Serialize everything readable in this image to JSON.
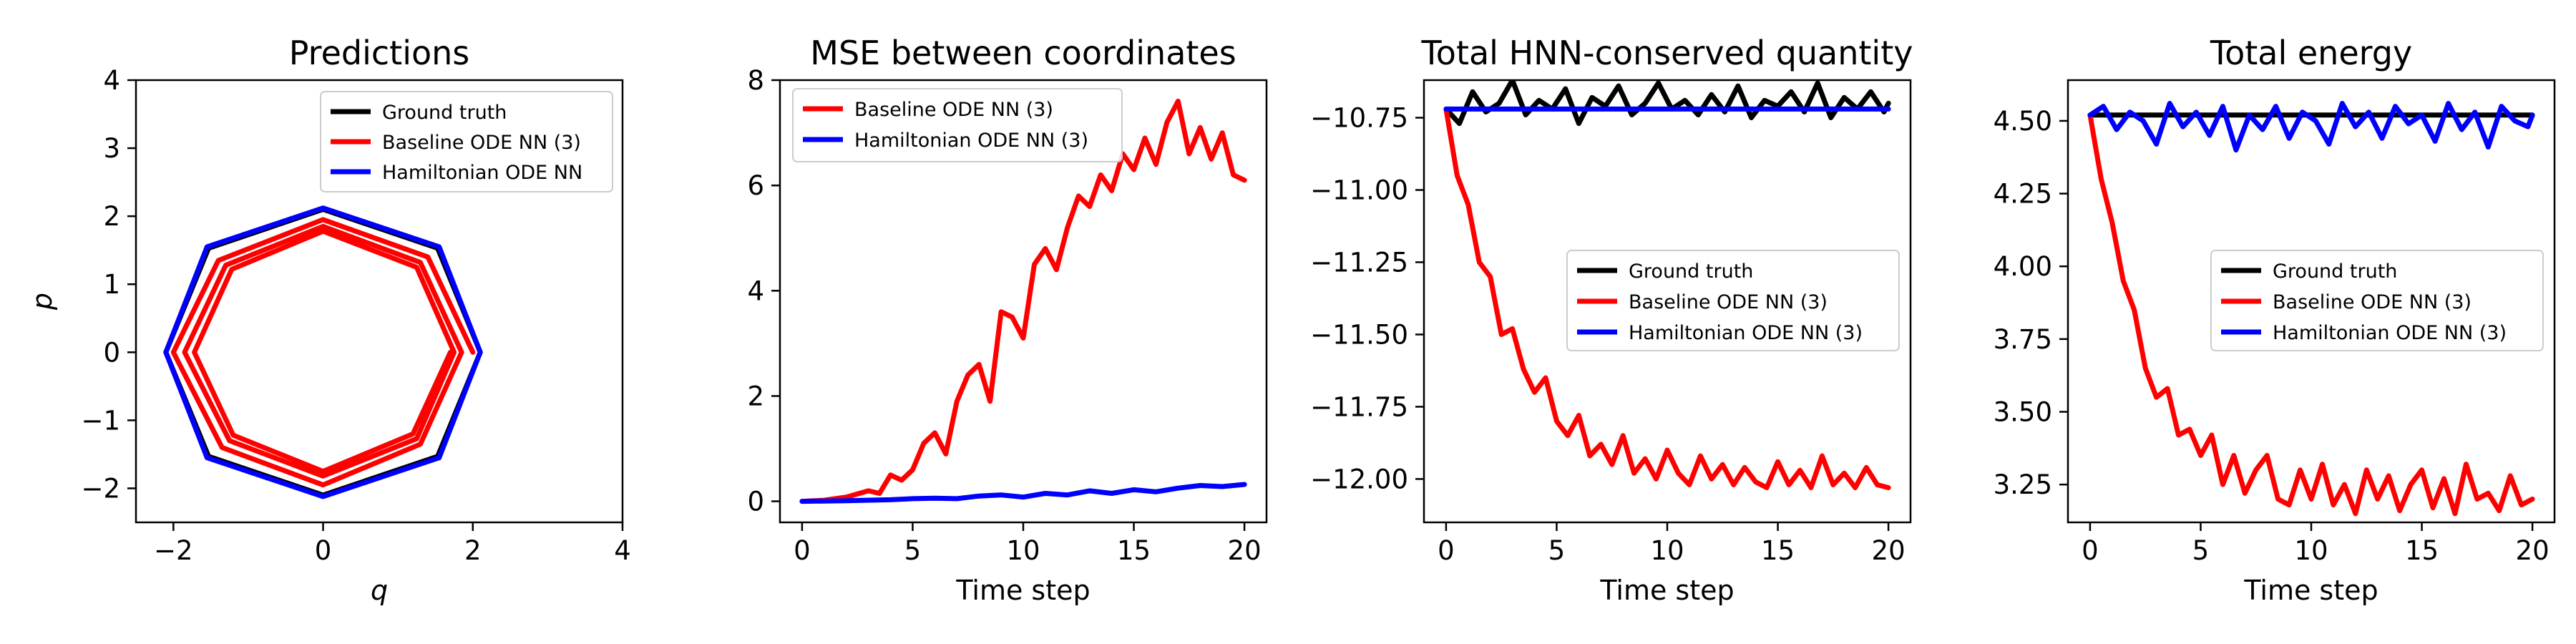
{
  "chart_data": [
    {
      "type": "line",
      "title": "Predictions",
      "xlabel": "q",
      "ylabel": "p",
      "xlim": [
        -2.5,
        4
      ],
      "ylim": [
        -2.5,
        4
      ],
      "xticks": [
        -2,
        0,
        2,
        4
      ],
      "yticks": [
        -2,
        -1,
        0,
        1,
        2,
        3,
        4
      ],
      "xtick_labels": [
        "−2",
        "0",
        "2",
        "4"
      ],
      "ytick_labels": [
        "−2",
        "−1",
        "0",
        "1",
        "2",
        "3",
        "4"
      ],
      "grid": false,
      "legend_position": "upper-right",
      "legend": [
        "Ground truth",
        "Baseline ODE NN (3)",
        "Hamiltonian ODE NN"
      ],
      "series": [
        {
          "name": "Ground truth",
          "color": "#000000",
          "x": [
            2.1,
            1.53,
            0.0,
            -1.53,
            -2.1,
            -1.53,
            0.0,
            1.53,
            2.1
          ],
          "y": [
            0.0,
            1.53,
            2.1,
            1.53,
            0.0,
            -1.53,
            -2.1,
            -1.53,
            0.0
          ]
        },
        {
          "name": "Baseline ODE NN (3)",
          "color": "#ff0000",
          "x": [
            2.0,
            1.4,
            0.0,
            -1.4,
            -2.0,
            -1.35,
            0.0,
            1.3,
            1.85,
            1.3,
            0.0,
            -1.3,
            -1.85,
            -1.25,
            0.0,
            1.25,
            1.75,
            1.25,
            0.0,
            -1.22,
            -1.72,
            -1.2,
            0.0,
            1.2,
            1.7
          ],
          "y": [
            0.0,
            1.4,
            1.95,
            1.35,
            0.0,
            -1.4,
            -1.95,
            -1.35,
            0.0,
            1.32,
            1.85,
            1.28,
            0.0,
            -1.3,
            -1.82,
            -1.27,
            0.0,
            1.25,
            1.78,
            1.22,
            0.0,
            -1.22,
            -1.75,
            -1.2,
            0.0
          ]
        },
        {
          "name": "Hamiltonian ODE NN",
          "color": "#0000ff",
          "x": [
            2.1,
            1.55,
            0.0,
            -1.55,
            -2.1,
            -1.55,
            0.0,
            1.55,
            2.1
          ],
          "y": [
            0.0,
            1.55,
            2.12,
            1.55,
            0.0,
            -1.55,
            -2.12,
            -1.55,
            0.0
          ]
        }
      ]
    },
    {
      "type": "line",
      "title": "MSE between coordinates",
      "xlabel": "Time step",
      "ylabel": "",
      "xlim": [
        -1,
        21
      ],
      "ylim": [
        -0.4,
        8
      ],
      "xticks": [
        0,
        5,
        10,
        15,
        20
      ],
      "yticks": [
        0,
        2,
        4,
        6,
        8
      ],
      "xtick_labels": [
        "0",
        "5",
        "10",
        "15",
        "20"
      ],
      "ytick_labels": [
        "0",
        "2",
        "4",
        "6",
        "8"
      ],
      "grid": false,
      "legend_position": "upper-left",
      "legend": [
        "Baseline ODE NN (3)",
        "Hamiltonian ODE NN (3)"
      ],
      "series": [
        {
          "name": "Baseline ODE NN (3)",
          "color": "#ff0000",
          "x": [
            0,
            1,
            2,
            3,
            3.5,
            4,
            4.5,
            5,
            5.5,
            6,
            6.5,
            7,
            7.5,
            8,
            8.5,
            9,
            9.5,
            10,
            10.5,
            11,
            11.5,
            12,
            12.5,
            13,
            13.5,
            14,
            14.5,
            15,
            15.5,
            16,
            16.5,
            17,
            17.5,
            18,
            18.5,
            19,
            19.5,
            20
          ],
          "y": [
            0,
            0.02,
            0.08,
            0.2,
            0.15,
            0.5,
            0.4,
            0.6,
            1.1,
            1.3,
            0.9,
            1.9,
            2.4,
            2.6,
            1.9,
            3.6,
            3.5,
            3.1,
            4.5,
            4.8,
            4.4,
            5.2,
            5.8,
            5.6,
            6.2,
            5.9,
            6.6,
            6.3,
            6.9,
            6.4,
            7.2,
            7.6,
            6.6,
            7.1,
            6.5,
            7.0,
            6.2,
            6.1
          ]
        },
        {
          "name": "Hamiltonian ODE NN (3)",
          "color": "#0000ff",
          "x": [
            0,
            2,
            4,
            5,
            6,
            7,
            8,
            9,
            10,
            11,
            12,
            13,
            14,
            15,
            16,
            17,
            18,
            19,
            20
          ],
          "y": [
            0,
            0.01,
            0.03,
            0.05,
            0.06,
            0.05,
            0.1,
            0.12,
            0.08,
            0.15,
            0.12,
            0.2,
            0.15,
            0.22,
            0.18,
            0.25,
            0.3,
            0.28,
            0.32
          ]
        }
      ]
    },
    {
      "type": "line",
      "title": "Total HNN-conserved quantity",
      "xlabel": "Time step",
      "ylabel": "",
      "xlim": [
        -1,
        21
      ],
      "ylim": [
        -12.15,
        -10.62
      ],
      "xticks": [
        0,
        5,
        10,
        15,
        20
      ],
      "yticks": [
        -12.0,
        -11.75,
        -11.5,
        -11.25,
        -11.0,
        -10.75
      ],
      "xtick_labels": [
        "0",
        "5",
        "10",
        "15",
        "20"
      ],
      "ytick_labels": [
        "−12.00",
        "−11.75",
        "−11.50",
        "−11.25",
        "−11.00",
        "−10.75"
      ],
      "grid": false,
      "legend_position": "center-right",
      "legend": [
        "Ground truth",
        "Baseline ODE NN (3)",
        "Hamiltonian ODE NN (3)"
      ],
      "series": [
        {
          "name": "Ground truth",
          "color": "#000000",
          "x": [
            0,
            0.6,
            1.2,
            1.8,
            2.4,
            3.0,
            3.6,
            4.2,
            4.8,
            5.4,
            6.0,
            6.6,
            7.2,
            7.8,
            8.4,
            9.0,
            9.6,
            10.2,
            10.8,
            11.4,
            12.0,
            12.6,
            13.2,
            13.8,
            14.4,
            15.0,
            15.6,
            16.2,
            16.8,
            17.4,
            18.0,
            18.6,
            19.2,
            19.8,
            20
          ],
          "y": [
            -10.72,
            -10.77,
            -10.66,
            -10.73,
            -10.7,
            -10.62,
            -10.74,
            -10.69,
            -10.72,
            -10.65,
            -10.77,
            -10.68,
            -10.71,
            -10.64,
            -10.74,
            -10.7,
            -10.63,
            -10.72,
            -10.69,
            -10.74,
            -10.67,
            -10.73,
            -10.64,
            -10.75,
            -10.69,
            -10.71,
            -10.66,
            -10.73,
            -10.63,
            -10.75,
            -10.68,
            -10.72,
            -10.66,
            -10.73,
            -10.7
          ]
        },
        {
          "name": "Baseline ODE NN (3)",
          "color": "#ff0000",
          "x": [
            0,
            0.5,
            1,
            1.5,
            2,
            2.5,
            3,
            3.5,
            4,
            4.5,
            5,
            5.5,
            6,
            6.5,
            7,
            7.5,
            8,
            8.5,
            9,
            9.5,
            10,
            10.5,
            11,
            11.5,
            12,
            12.5,
            13,
            13.5,
            14,
            14.5,
            15,
            15.5,
            16,
            16.5,
            17,
            17.5,
            18,
            18.5,
            19,
            19.5,
            20
          ],
          "y": [
            -10.72,
            -10.95,
            -11.05,
            -11.25,
            -11.3,
            -11.5,
            -11.48,
            -11.62,
            -11.7,
            -11.65,
            -11.8,
            -11.85,
            -11.78,
            -11.92,
            -11.88,
            -11.95,
            -11.85,
            -11.98,
            -11.93,
            -12.0,
            -11.9,
            -11.98,
            -12.02,
            -11.92,
            -12.0,
            -11.95,
            -12.02,
            -11.96,
            -12.01,
            -12.03,
            -11.94,
            -12.02,
            -11.97,
            -12.03,
            -11.92,
            -12.02,
            -11.98,
            -12.03,
            -11.96,
            -12.02,
            -12.03
          ]
        },
        {
          "name": "Hamiltonian ODE NN (3)",
          "color": "#0000ff",
          "x": [
            0,
            20
          ],
          "y": [
            -10.72,
            -10.72
          ]
        }
      ]
    },
    {
      "type": "line",
      "title": "Total energy",
      "xlabel": "Time step",
      "ylabel": "",
      "xlim": [
        -1,
        21
      ],
      "ylim": [
        3.12,
        4.64
      ],
      "xticks": [
        0,
        5,
        10,
        15,
        20
      ],
      "yticks": [
        3.25,
        3.5,
        3.75,
        4.0,
        4.25,
        4.5
      ],
      "xtick_labels": [
        "0",
        "5",
        "10",
        "15",
        "20"
      ],
      "ytick_labels": [
        "3.25",
        "3.50",
        "3.75",
        "4.00",
        "4.25",
        "4.50"
      ],
      "grid": false,
      "legend_position": "center-right",
      "legend": [
        "Ground truth",
        "Baseline ODE NN (3)",
        "Hamiltonian ODE NN (3)"
      ],
      "series": [
        {
          "name": "Ground truth",
          "color": "#000000",
          "x": [
            0,
            20
          ],
          "y": [
            4.52,
            4.52
          ]
        },
        {
          "name": "Baseline ODE NN (3)",
          "color": "#ff0000",
          "x": [
            0,
            0.5,
            1,
            1.5,
            2,
            2.5,
            3,
            3.5,
            4,
            4.5,
            5,
            5.5,
            6,
            6.5,
            7,
            7.5,
            8,
            8.5,
            9,
            9.5,
            10,
            10.5,
            11,
            11.5,
            12,
            12.5,
            13,
            13.5,
            14,
            14.5,
            15,
            15.5,
            16,
            16.5,
            17,
            17.5,
            18,
            18.5,
            19,
            19.5,
            20
          ],
          "y": [
            4.52,
            4.3,
            4.15,
            3.95,
            3.85,
            3.65,
            3.55,
            3.58,
            3.42,
            3.44,
            3.35,
            3.42,
            3.25,
            3.35,
            3.22,
            3.3,
            3.35,
            3.2,
            3.18,
            3.3,
            3.2,
            3.32,
            3.18,
            3.25,
            3.15,
            3.3,
            3.2,
            3.28,
            3.16,
            3.25,
            3.3,
            3.17,
            3.27,
            3.15,
            3.32,
            3.2,
            3.22,
            3.16,
            3.28,
            3.18,
            3.2
          ]
        },
        {
          "name": "Hamiltonian ODE NN (3)",
          "color": "#0000ff",
          "x": [
            0,
            0.6,
            1.2,
            1.8,
            2.4,
            3.0,
            3.6,
            4.2,
            4.8,
            5.4,
            6.0,
            6.6,
            7.2,
            7.8,
            8.4,
            9.0,
            9.6,
            10.2,
            10.8,
            11.4,
            12.0,
            12.6,
            13.2,
            13.8,
            14.4,
            15.0,
            15.6,
            16.2,
            16.8,
            17.4,
            18.0,
            18.6,
            19.2,
            19.8,
            20
          ],
          "y": [
            4.52,
            4.55,
            4.47,
            4.53,
            4.5,
            4.42,
            4.56,
            4.48,
            4.53,
            4.45,
            4.55,
            4.4,
            4.52,
            4.47,
            4.55,
            4.44,
            4.53,
            4.5,
            4.42,
            4.56,
            4.48,
            4.53,
            4.44,
            4.55,
            4.49,
            4.52,
            4.43,
            4.56,
            4.47,
            4.53,
            4.41,
            4.55,
            4.5,
            4.48,
            4.52
          ]
        }
      ]
    }
  ]
}
